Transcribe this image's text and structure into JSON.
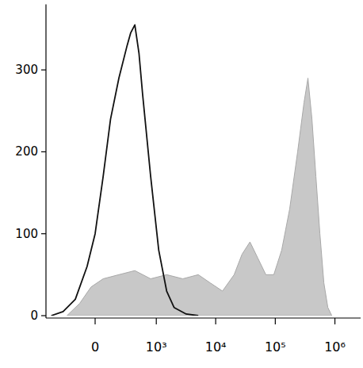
{
  "chart_data": {
    "type": "line",
    "xlim": [
      -620,
      2700000
    ],
    "ylim": [
      0,
      380
    ],
    "xticks": [
      0,
      {
        "value": 1000,
        "label": "10³"
      },
      {
        "value": 10000,
        "label": "10⁴"
      },
      {
        "value": 100000,
        "label": "10⁵"
      },
      {
        "value": 1000000,
        "label": "10⁶"
      }
    ],
    "yticks": [
      0,
      100,
      200,
      300
    ],
    "grid": false,
    "series": [
      {
        "type": "area",
        "color": "#c8c8c8",
        "x": [
          -250,
          -120,
          -30,
          60,
          200,
          420,
          800,
          1500,
          2800,
          5100,
          8100,
          13000,
          20400,
          27700,
          37600,
          51100,
          69500,
          94400,
          128000,
          174000,
          237000,
          303000,
          353000,
          412000,
          480000,
          560000,
          653000,
          761000,
          887000
        ],
        "values": [
          0,
          15,
          35,
          45,
          50,
          55,
          45,
          50,
          45,
          50,
          40,
          30,
          50,
          75,
          90,
          70,
          50,
          50,
          80,
          130,
          200,
          260,
          290,
          240,
          170,
          100,
          40,
          10,
          0
        ]
      },
      {
        "type": "line",
        "color": "#111111",
        "x": [
          -500,
          -300,
          -160,
          -60,
          0,
          60,
          120,
          200,
          300,
          350,
          420,
          500,
          580,
          800,
          1100,
          1500,
          2000,
          3200,
          5100
        ],
        "values": [
          0,
          5,
          20,
          60,
          100,
          170,
          240,
          290,
          330,
          345,
          355,
          320,
          270,
          170,
          80,
          30,
          10,
          2,
          0
        ]
      }
    ]
  }
}
